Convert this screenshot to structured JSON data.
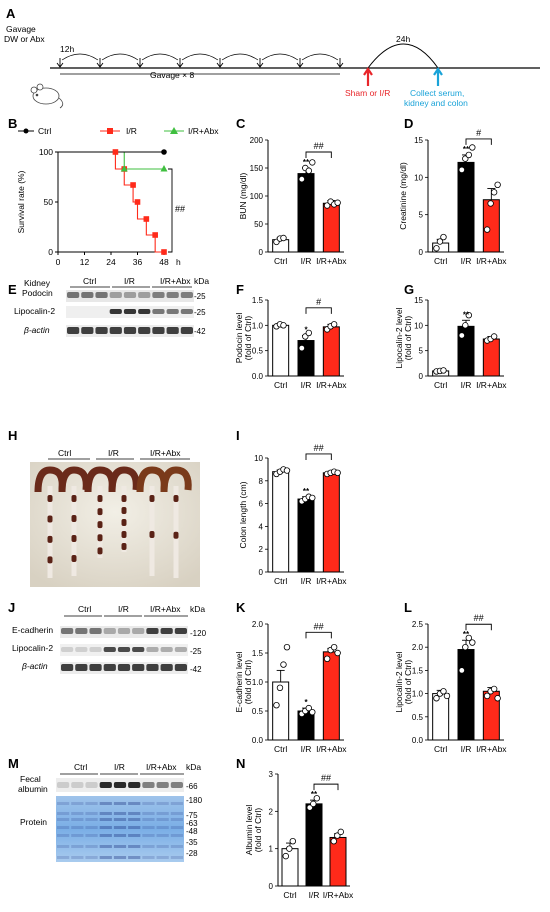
{
  "panel_letters": [
    "A",
    "B",
    "C",
    "D",
    "E",
    "F",
    "G",
    "H",
    "I",
    "J",
    "K",
    "L",
    "M",
    "N"
  ],
  "colors": {
    "ctrl": "#ffffff",
    "ir": "#000000",
    "abx": "#ff2a1a",
    "survival_abx": "#3fbf3f",
    "sham_arrow": "#e8262a",
    "collect_arrow": "#1aa3d8"
  },
  "timeline": {
    "gavage_label": "Gavage",
    "gavage_label2": "DW or Abx",
    "interval": "12h",
    "gavage_times": "Gavage × 8",
    "wait": "24h",
    "sham": "Sham or I/R",
    "collect1": "Collect serum,",
    "collect2": "kidney and colon"
  },
  "survival": {
    "legend": [
      "Ctrl",
      "I/R",
      "I/R+Abx"
    ],
    "ylabel": "Survival rate (%)",
    "xunit": "h",
    "sig": "##"
  },
  "blots": {
    "kda": "kDa",
    "E": {
      "title1": "Kidney",
      "title2": "Podocin",
      "row2": "Lipocalin-2",
      "row3": "β-actin",
      "groups": [
        "Ctrl",
        "I/R",
        "I/R+Abx"
      ],
      "mw": [
        "-25",
        "-25",
        "-42"
      ]
    },
    "J": {
      "row1": "E-cadherin",
      "row2": "Lipocalin-2",
      "row3": "β-actin",
      "groups": [
        "Ctrl",
        "I/R",
        "I/R+Abx"
      ],
      "mw": [
        "-120",
        "-25",
        "-42"
      ]
    },
    "M": {
      "row1a": "Fecal",
      "row1b": "albumin",
      "row2": "Protein",
      "groups": [
        "Ctrl",
        "I/R",
        "I/R+Abx"
      ],
      "mw": [
        "-66",
        "-180",
        "-75",
        "-63",
        "-48",
        "-35",
        "-28"
      ]
    },
    "H": {
      "groups": [
        "Ctrl",
        "I/R",
        "I/R+Abx"
      ]
    }
  },
  "chart_data": [
    {
      "id": "B",
      "type": "line",
      "title": "",
      "xlabel": "h",
      "ylabel": "Survival rate (%)",
      "xlim": [
        0,
        48
      ],
      "ylim": [
        0,
        100
      ],
      "xticks": [
        0,
        12,
        24,
        36,
        48
      ],
      "yticks": [
        0,
        50,
        100
      ],
      "series": [
        {
          "name": "Ctrl",
          "x": [
            0,
            48
          ],
          "y": [
            100,
            100
          ]
        },
        {
          "name": "I/R",
          "x": [
            0,
            24,
            26,
            26,
            30,
            30,
            34,
            34,
            36,
            36,
            40,
            40,
            44,
            44,
            48
          ],
          "y": [
            100,
            100,
            100,
            83,
            83,
            67,
            67,
            50,
            50,
            33,
            33,
            17,
            17,
            0,
            0
          ]
        },
        {
          "name": "I/R+Abx",
          "x": [
            0,
            30,
            30,
            48
          ],
          "y": [
            100,
            100,
            83,
            83
          ]
        }
      ],
      "annotations": [
        "##"
      ]
    },
    {
      "id": "C",
      "type": "bar",
      "categories": [
        "Ctrl",
        "I/R",
        "I/R+Abx"
      ],
      "values": [
        22,
        140,
        87
      ],
      "errors": [
        3,
        10,
        5
      ],
      "ylabel": "BUN (mg/dl)",
      "ylim": [
        0,
        200
      ],
      "yticks": [
        0,
        50,
        100,
        150,
        200
      ],
      "stars": [
        "",
        "**",
        ""
      ],
      "bracket": "##"
    },
    {
      "id": "D",
      "type": "bar",
      "categories": [
        "Ctrl",
        "I/R",
        "I/R+Abx"
      ],
      "values": [
        1.2,
        12,
        7
      ],
      "errors": [
        0.5,
        1,
        1.5
      ],
      "ylabel": "Creatinine (mg/dl)",
      "ylim": [
        0,
        15
      ],
      "yticks": [
        0,
        5,
        10,
        15
      ],
      "stars": [
        "",
        "**",
        ""
      ],
      "bracket": "#"
    },
    {
      "id": "F",
      "type": "bar",
      "categories": [
        "Ctrl",
        "I/R",
        "I/R+Abx"
      ],
      "values": [
        1.0,
        0.7,
        0.97
      ],
      "errors": [
        0.03,
        0.1,
        0.05
      ],
      "ylabel": "Podocin level (fold of Ctrl)",
      "ylim": [
        0,
        1.5
      ],
      "yticks": [
        0,
        0.5,
        1.0,
        1.5
      ],
      "stars": [
        "",
        "*",
        ""
      ],
      "bracket": "#"
    },
    {
      "id": "G",
      "type": "bar",
      "categories": [
        "Ctrl",
        "I/R",
        "I/R+Abx"
      ],
      "values": [
        1.0,
        9.8,
        7.3
      ],
      "errors": [
        0.1,
        1.2,
        0.5
      ],
      "ylabel": "Lipocalin-2 level (fold of Ctrl)",
      "ylim": [
        0,
        15
      ],
      "yticks": [
        0,
        5,
        10,
        15
      ],
      "stars": [
        "",
        "**",
        ""
      ],
      "bracket": ""
    },
    {
      "id": "I",
      "type": "bar",
      "categories": [
        "Ctrl",
        "I/R",
        "I/R+Abx"
      ],
      "values": [
        8.8,
        6.4,
        8.7
      ],
      "errors": [
        0.15,
        0.2,
        0.1
      ],
      "ylabel": "Colon length (cm)",
      "ylim": [
        0,
        10
      ],
      "yticks": [
        0,
        2,
        4,
        6,
        8,
        10
      ],
      "stars": [
        "",
        "**",
        ""
      ],
      "bracket": "##"
    },
    {
      "id": "K",
      "type": "bar",
      "categories": [
        "Ctrl",
        "I/R",
        "I/R+Abx"
      ],
      "values": [
        1.0,
        0.5,
        1.52
      ],
      "errors": [
        0.2,
        0.05,
        0.06
      ],
      "ylabel": "E-cadherin level (fold of Ctrl)",
      "ylim": [
        0,
        2.0
      ],
      "yticks": [
        0,
        0.5,
        1.0,
        1.5,
        2.0
      ],
      "stars": [
        "",
        "*",
        ""
      ],
      "bracket": "##"
    },
    {
      "id": "L",
      "type": "bar",
      "categories": [
        "Ctrl",
        "I/R",
        "I/R+Abx"
      ],
      "values": [
        1.0,
        1.95,
        1.05
      ],
      "errors": [
        0.07,
        0.2,
        0.08
      ],
      "ylabel": "Lipocalin-2 level (fold of Ctrl)",
      "ylim": [
        0,
        2.5
      ],
      "yticks": [
        0,
        0.5,
        1.0,
        1.5,
        2.0,
        2.5
      ],
      "stars": [
        "",
        "**",
        ""
      ],
      "bracket": "##"
    },
    {
      "id": "N",
      "type": "bar",
      "categories": [
        "Ctrl",
        "I/R",
        "I/R+Abx"
      ],
      "values": [
        1.0,
        2.2,
        1.3
      ],
      "errors": [
        0.15,
        0.1,
        0.1
      ],
      "ylabel": "Albumin level (fold of Ctrl)",
      "ylim": [
        0,
        3
      ],
      "yticks": [
        0,
        1,
        2,
        3
      ],
      "stars": [
        "",
        "**",
        ""
      ],
      "bracket": "##"
    }
  ]
}
